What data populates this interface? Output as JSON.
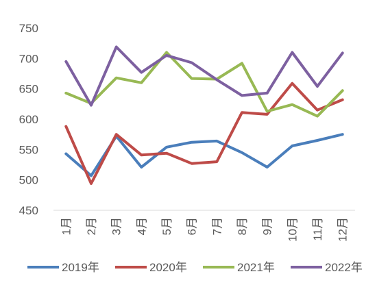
{
  "chart_data": {
    "type": "line",
    "title": "",
    "xlabel": "",
    "ylabel": "",
    "categories": [
      "1月",
      "2月",
      "3月",
      "4月",
      "5月",
      "6月",
      "7月",
      "8月",
      "9月",
      "10月",
      "11月",
      "12月"
    ],
    "ylim": [
      450,
      750
    ],
    "yticks": [
      450,
      500,
      550,
      600,
      650,
      700,
      750
    ],
    "grid": false,
    "legend_position": "bottom",
    "series": [
      {
        "name": "2019年",
        "color": "#4a7ebb",
        "values": [
          543,
          507,
          572,
          521,
          554,
          562,
          564,
          545,
          521,
          556,
          565,
          575
        ]
      },
      {
        "name": "2020年",
        "color": "#be4b48",
        "values": [
          588,
          494,
          575,
          541,
          544,
          527,
          530,
          611,
          608,
          659,
          615,
          632
        ]
      },
      {
        "name": "2021年",
        "color": "#98b954",
        "values": [
          643,
          626,
          668,
          660,
          710,
          667,
          666,
          692,
          613,
          624,
          605,
          647
        ]
      },
      {
        "name": "2022年",
        "color": "#7d60a0",
        "values": [
          695,
          623,
          719,
          677,
          705,
          693,
          665,
          639,
          643,
          710,
          654,
          709
        ]
      }
    ]
  }
}
